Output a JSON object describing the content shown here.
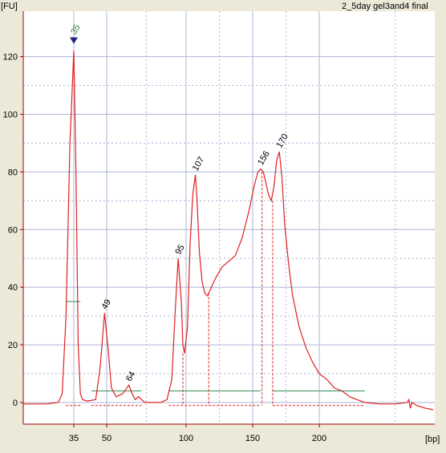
{
  "title": "2_5day gel3and4 final",
  "colors": {
    "background": "#ECE9D8",
    "plot_background": "#FFFFFF",
    "trace": "#E02020",
    "grid": "#AEB4D6",
    "axis": "#A00000",
    "marker": "#1C2A7A",
    "marker_label": "#2E7D32",
    "region_bar": "#2E8B57"
  },
  "chart_data": {
    "type": "line",
    "title": "2_5day gel3and4 final",
    "xlabel": "[bp]",
    "ylabel": "[FU]",
    "x_axis": {
      "ticks": [
        {
          "value": 35,
          "label": "35"
        },
        {
          "value": 50,
          "label": "50"
        },
        {
          "value": 100,
          "label": "100"
        },
        {
          "value": 150,
          "label": "150"
        },
        {
          "value": 200,
          "label": "200"
        }
      ]
    },
    "y_axis": {
      "ylim": [
        -8,
        134
      ],
      "ticks": [
        0,
        20,
        40,
        60,
        80,
        100,
        120
      ]
    },
    "grid": true,
    "marker": {
      "label": "35",
      "x": 35,
      "y": 125
    },
    "peaks": [
      {
        "label": "49",
        "x": 49,
        "y": 31
      },
      {
        "label": "64",
        "x": 64,
        "y": 6
      },
      {
        "label": "95",
        "x": 95,
        "y": 50
      },
      {
        "label": "107",
        "x": 107,
        "y": 79
      },
      {
        "label": "156",
        "x": 156,
        "y": 81
      },
      {
        "label": "170",
        "x": 170,
        "y": 87
      }
    ],
    "series": [
      {
        "points": [
          [
            22,
            -0.5
          ],
          [
            28,
            -0.5
          ],
          [
            31,
            0
          ],
          [
            32,
            3
          ],
          [
            33,
            30
          ],
          [
            34,
            90
          ],
          [
            35,
            122
          ],
          [
            36,
            80
          ],
          [
            37,
            20
          ],
          [
            38,
            3
          ],
          [
            39,
            1
          ],
          [
            41,
            0.5
          ],
          [
            45,
            1
          ],
          [
            47,
            12
          ],
          [
            49,
            31
          ],
          [
            51,
            18
          ],
          [
            53,
            5
          ],
          [
            56,
            2
          ],
          [
            60,
            3
          ],
          [
            64,
            6
          ],
          [
            66,
            3
          ],
          [
            68,
            1
          ],
          [
            70,
            2
          ],
          [
            72,
            1
          ],
          [
            74,
            0
          ],
          [
            78,
            0
          ],
          [
            84,
            0
          ],
          [
            88,
            1
          ],
          [
            91,
            8
          ],
          [
            93,
            30
          ],
          [
            95,
            50
          ],
          [
            97,
            35
          ],
          [
            98,
            20
          ],
          [
            99,
            17
          ],
          [
            101,
            26
          ],
          [
            103,
            55
          ],
          [
            105,
            72
          ],
          [
            107,
            79
          ],
          [
            108,
            72
          ],
          [
            110,
            52
          ],
          [
            112,
            42
          ],
          [
            114,
            38
          ],
          [
            116,
            37
          ],
          [
            118,
            39
          ],
          [
            122,
            43
          ],
          [
            127,
            47
          ],
          [
            132,
            49
          ],
          [
            137,
            51
          ],
          [
            142,
            57
          ],
          [
            147,
            66
          ],
          [
            151,
            75
          ],
          [
            154,
            80
          ],
          [
            156,
            81
          ],
          [
            158,
            80
          ],
          [
            160,
            76
          ],
          [
            162,
            72
          ],
          [
            164,
            70
          ],
          [
            166,
            75
          ],
          [
            168,
            84
          ],
          [
            170,
            87
          ],
          [
            172,
            78
          ],
          [
            174,
            62
          ],
          [
            177,
            48
          ],
          [
            180,
            37
          ],
          [
            185,
            26
          ],
          [
            190,
            19
          ],
          [
            195,
            14
          ],
          [
            200,
            10
          ],
          [
            205,
            8
          ],
          [
            210,
            5
          ],
          [
            215,
            4
          ],
          [
            220,
            2
          ],
          [
            225,
            1
          ],
          [
            230,
            0
          ],
          [
            240,
            -0.5
          ],
          [
            250,
            -0.5
          ],
          [
            258,
            0
          ],
          [
            259,
            1
          ],
          [
            260,
            -2
          ],
          [
            261,
            0
          ],
          [
            264,
            -1
          ],
          [
            270,
            -2
          ],
          [
            275,
            -2.5
          ]
        ]
      }
    ],
    "baseline_regions": [
      {
        "x1": 33,
        "x2": 38,
        "y": 35,
        "y_bottom": -0.5
      },
      {
        "x1": 43,
        "x2": 72,
        "y": 4,
        "y_bottom": -0.5
      },
      {
        "x1": 89,
        "x2": 156,
        "y": 4,
        "y_bottom": -0.5
      },
      {
        "x1": 165,
        "x2": 230,
        "y": 4,
        "y_bottom": -0.5
      }
    ],
    "region_dividers": [
      {
        "x": 98,
        "y": 17
      },
      {
        "x": 117,
        "y": 38
      },
      {
        "x": 157,
        "y": 80
      },
      {
        "x": 165,
        "y": 70
      }
    ]
  }
}
